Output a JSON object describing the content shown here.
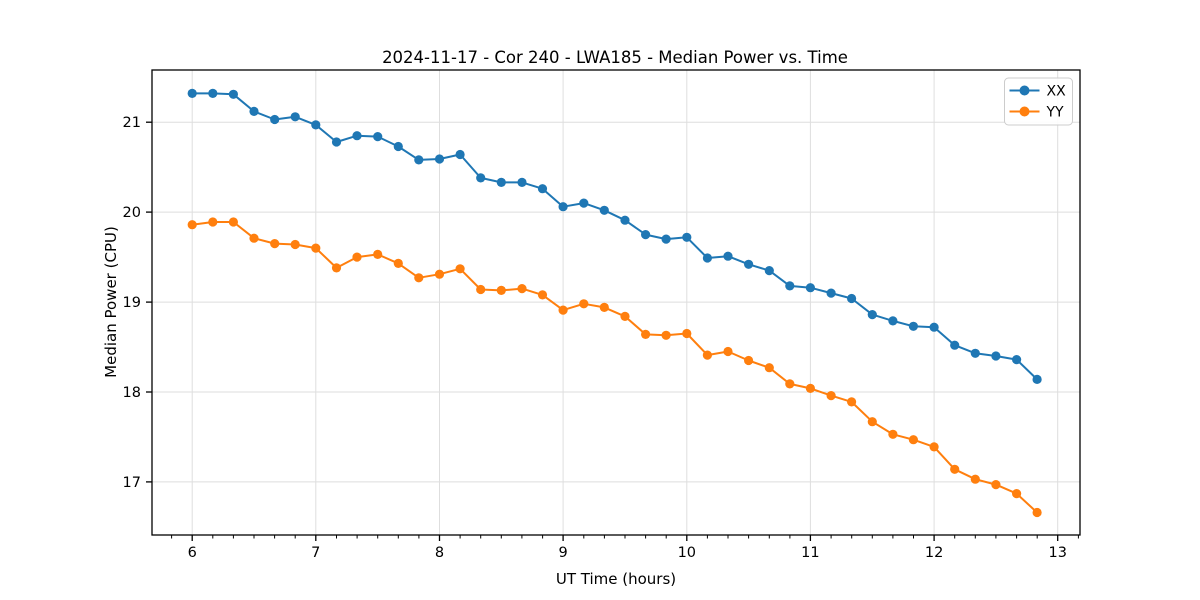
{
  "figure": {
    "background": "#ffffff"
  },
  "chart_data": {
    "type": "line",
    "title": "2024-11-17 - Cor 240 - LWA185 - Median Power vs. Time",
    "xlabel": "UT Time (hours)",
    "ylabel": "Median Power (CPU)",
    "xlim": [
      5.675,
      13.18
    ],
    "ylim": [
      16.41,
      21.58
    ],
    "x_ticks": [
      6,
      7,
      8,
      9,
      10,
      11,
      12,
      13
    ],
    "y_ticks": [
      17,
      18,
      19,
      20,
      21
    ],
    "x_minor_step": 0.16667,
    "grid": true,
    "legend_position": "top-right",
    "colors": {
      "grid": "#dedede",
      "axis": "#000000",
      "text": "#000000",
      "legend_border": "#cccccc",
      "background": "#ffffff"
    },
    "x": [
      6.0,
      6.167,
      6.333,
      6.5,
      6.667,
      6.833,
      7.0,
      7.167,
      7.333,
      7.5,
      7.667,
      7.833,
      8.0,
      8.167,
      8.333,
      8.5,
      8.667,
      8.833,
      9.0,
      9.167,
      9.333,
      9.5,
      9.667,
      9.833,
      10.0,
      10.167,
      10.333,
      10.5,
      10.667,
      10.833,
      11.0,
      11.167,
      11.333,
      11.5,
      11.667,
      11.833,
      12.0,
      12.167,
      12.333,
      12.5,
      12.667,
      12.833
    ],
    "series": [
      {
        "name": "XX",
        "color": "#1f77b4",
        "values": [
          21.32,
          21.32,
          21.31,
          21.12,
          21.03,
          21.06,
          20.97,
          20.78,
          20.85,
          20.84,
          20.73,
          20.58,
          20.59,
          20.64,
          20.38,
          20.33,
          20.33,
          20.26,
          20.06,
          20.1,
          20.02,
          19.91,
          19.75,
          19.7,
          19.72,
          19.49,
          19.51,
          19.42,
          19.35,
          19.18,
          19.16,
          19.1,
          19.04,
          18.86,
          18.79,
          18.73,
          18.72,
          18.52,
          18.43,
          18.4,
          18.36,
          18.14
        ]
      },
      {
        "name": "YY",
        "color": "#ff7f0e",
        "values": [
          19.86,
          19.89,
          19.89,
          19.71,
          19.65,
          19.64,
          19.6,
          19.38,
          19.5,
          19.53,
          19.43,
          19.27,
          19.31,
          19.37,
          19.14,
          19.13,
          19.15,
          19.08,
          18.91,
          18.98,
          18.94,
          18.84,
          18.64,
          18.63,
          18.65,
          18.41,
          18.45,
          18.35,
          18.27,
          18.09,
          18.04,
          17.96,
          17.89,
          17.67,
          17.53,
          17.47,
          17.39,
          17.14,
          17.03,
          16.97,
          16.87,
          16.66
        ]
      }
    ]
  }
}
